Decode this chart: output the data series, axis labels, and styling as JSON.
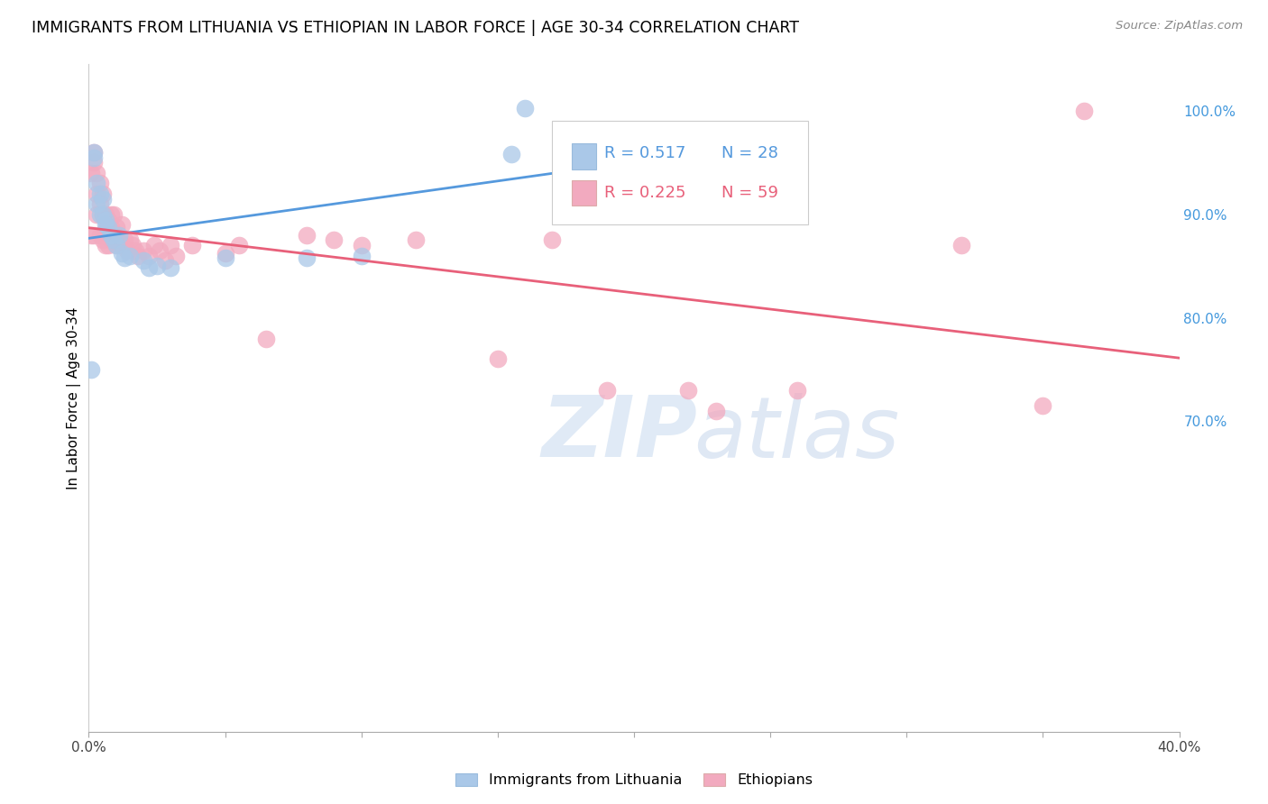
{
  "title": "IMMIGRANTS FROM LITHUANIA VS ETHIOPIAN IN LABOR FORCE | AGE 30-34 CORRELATION CHART",
  "source": "Source: ZipAtlas.com",
  "ylabel": "In Labor Force | Age 30-34",
  "xlim": [
    0.0,
    0.4
  ],
  "ylim": [
    0.4,
    1.045
  ],
  "xticks": [
    0.0,
    0.05,
    0.1,
    0.15,
    0.2,
    0.25,
    0.3,
    0.35,
    0.4
  ],
  "xtick_labels": [
    "0.0%",
    "",
    "",
    "",
    "",
    "",
    "",
    "",
    "40.0%"
  ],
  "yticks": [
    0.4,
    0.5,
    0.6,
    0.7,
    0.8,
    0.9,
    1.0
  ],
  "ytick_labels_right": [
    "",
    "",
    "",
    "70.0%",
    "80.0%",
    "90.0%",
    "100.0%"
  ],
  "legend_R1": "R = 0.517",
  "legend_N1": "N = 28",
  "legend_R2": "R = 0.225",
  "legend_N2": "N = 59",
  "legend_label1": "Immigrants from Lithuania",
  "legend_label2": "Ethiopians",
  "blue_color": "#aac8e8",
  "pink_color": "#f2aabf",
  "blue_line_color": "#5599dd",
  "pink_line_color": "#e8607a",
  "watermark_zip": "ZIP",
  "watermark_atlas": "atlas",
  "title_fontsize": 12.5,
  "label_fontsize": 11,
  "tick_fontsize": 11,
  "lit_x": [
    0.001,
    0.002,
    0.002,
    0.003,
    0.003,
    0.004,
    0.004,
    0.005,
    0.005,
    0.006,
    0.006,
    0.007,
    0.008,
    0.009,
    0.01,
    0.011,
    0.012,
    0.013,
    0.015,
    0.02,
    0.022,
    0.025,
    0.03,
    0.05,
    0.08,
    0.1,
    0.155,
    0.16
  ],
  "lit_y": [
    0.75,
    0.96,
    0.955,
    0.93,
    0.91,
    0.92,
    0.9,
    0.915,
    0.9,
    0.895,
    0.89,
    0.888,
    0.88,
    0.875,
    0.87,
    0.88,
    0.862,
    0.858,
    0.86,
    0.855,
    0.848,
    0.85,
    0.848,
    0.858,
    0.858,
    0.86,
    0.958,
    1.003
  ],
  "eth_x": [
    0.001,
    0.001,
    0.002,
    0.002,
    0.002,
    0.003,
    0.003,
    0.003,
    0.004,
    0.004,
    0.004,
    0.005,
    0.005,
    0.005,
    0.006,
    0.006,
    0.006,
    0.007,
    0.007,
    0.008,
    0.008,
    0.008,
    0.009,
    0.009,
    0.01,
    0.01,
    0.011,
    0.012,
    0.012,
    0.013,
    0.014,
    0.015,
    0.016,
    0.017,
    0.018,
    0.02,
    0.022,
    0.024,
    0.026,
    0.028,
    0.03,
    0.032,
    0.038,
    0.05,
    0.055,
    0.065,
    0.08,
    0.09,
    0.1,
    0.12,
    0.15,
    0.17,
    0.19,
    0.22,
    0.23,
    0.26,
    0.32,
    0.35,
    0.365
  ],
  "eth_y": [
    0.88,
    0.94,
    0.96,
    0.95,
    0.88,
    0.94,
    0.92,
    0.9,
    0.93,
    0.91,
    0.88,
    0.92,
    0.9,
    0.875,
    0.9,
    0.885,
    0.87,
    0.895,
    0.87,
    0.9,
    0.888,
    0.875,
    0.9,
    0.875,
    0.888,
    0.87,
    0.875,
    0.89,
    0.87,
    0.875,
    0.865,
    0.875,
    0.87,
    0.865,
    0.86,
    0.865,
    0.86,
    0.87,
    0.865,
    0.855,
    0.87,
    0.86,
    0.87,
    0.862,
    0.87,
    0.78,
    0.88,
    0.875,
    0.87,
    0.875,
    0.76,
    0.875,
    0.73,
    0.73,
    0.71,
    0.73,
    0.87,
    0.715,
    1.0
  ]
}
